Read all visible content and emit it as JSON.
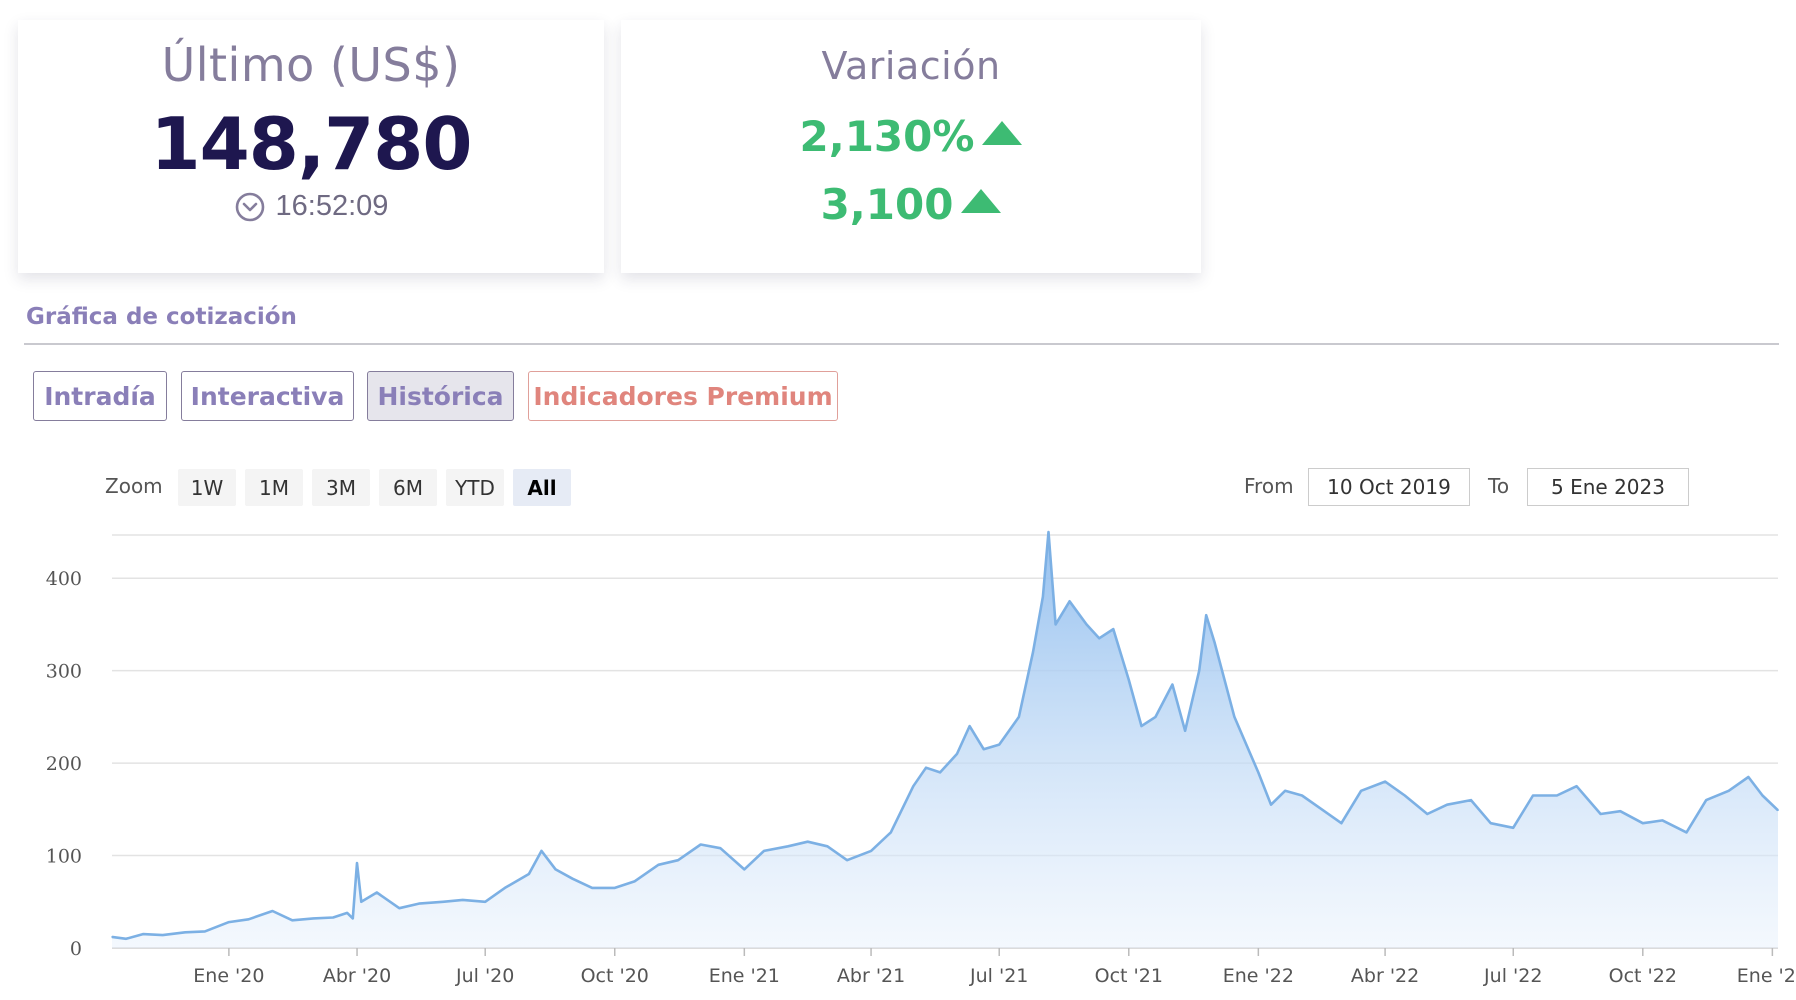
{
  "last_card": {
    "title": "Último (US$)",
    "price": "148,780",
    "time": "16:52:09",
    "icon": "clock-icon"
  },
  "variation_card": {
    "title": "Variación",
    "percent": "2,130%",
    "absolute": "3,100",
    "direction_icon": "arrow-up-icon",
    "color": "#3dbb73"
  },
  "section": {
    "title": "Gráfica de cotización"
  },
  "tabs": [
    {
      "label": "Intradía"
    },
    {
      "label": "Interactiva"
    },
    {
      "label": "Histórica",
      "active": true
    },
    {
      "label": "Indicadores Premium"
    }
  ],
  "range_selector": {
    "zoom_label": "Zoom",
    "buttons": [
      "1W",
      "1M",
      "3M",
      "6M",
      "YTD",
      "All"
    ],
    "selected": "All",
    "from_label": "From",
    "from_value": "10 Oct 2019",
    "to_label": "To",
    "to_value": "5 Ene 2023"
  },
  "chart_data": {
    "type": "area",
    "title": "",
    "xlabel": "",
    "ylabel": "",
    "x_start": "2019-10-10",
    "x_end": "2023-01-05",
    "ylim": [
      0,
      450
    ],
    "yticks": [
      0,
      100,
      200,
      300,
      400
    ],
    "xticks": [
      {
        "label": "Ene '20",
        "date": "2020-01-01"
      },
      {
        "label": "Abr '20",
        "date": "2020-04-01"
      },
      {
        "label": "Jul '20",
        "date": "2020-07-01"
      },
      {
        "label": "Oct '20",
        "date": "2020-10-01"
      },
      {
        "label": "Ene '21",
        "date": "2021-01-01"
      },
      {
        "label": "Abr '21",
        "date": "2021-04-01"
      },
      {
        "label": "Jul '21",
        "date": "2021-07-01"
      },
      {
        "label": "Oct '21",
        "date": "2021-10-01"
      },
      {
        "label": "Ene '22",
        "date": "2022-01-01"
      },
      {
        "label": "Abr '22",
        "date": "2022-04-01"
      },
      {
        "label": "Jul '22",
        "date": "2022-07-01"
      },
      {
        "label": "Oct '22",
        "date": "2022-10-01"
      },
      {
        "label": "Ene '23",
        "date": "2023-01-01"
      }
    ],
    "grid": true,
    "legend": "none",
    "line_color": "#7cb0e4",
    "fill_color": "#a9cdf2",
    "series": [
      {
        "points": [
          [
            "2019-10-10",
            12
          ],
          [
            "2019-10-20",
            10
          ],
          [
            "2019-11-01",
            15
          ],
          [
            "2019-11-15",
            14
          ],
          [
            "2019-12-01",
            17
          ],
          [
            "2019-12-15",
            18
          ],
          [
            "2020-01-01",
            28
          ],
          [
            "2020-01-15",
            31
          ],
          [
            "2020-02-01",
            40
          ],
          [
            "2020-02-15",
            30
          ],
          [
            "2020-03-01",
            32
          ],
          [
            "2020-03-15",
            33
          ],
          [
            "2020-03-25",
            38
          ],
          [
            "2020-03-29",
            32
          ],
          [
            "2020-04-01",
            92
          ],
          [
            "2020-04-04",
            50
          ],
          [
            "2020-04-15",
            60
          ],
          [
            "2020-05-01",
            43
          ],
          [
            "2020-05-15",
            48
          ],
          [
            "2020-06-01",
            50
          ],
          [
            "2020-06-15",
            52
          ],
          [
            "2020-07-01",
            50
          ],
          [
            "2020-07-15",
            65
          ],
          [
            "2020-08-01",
            80
          ],
          [
            "2020-08-10",
            105
          ],
          [
            "2020-08-20",
            85
          ],
          [
            "2020-09-01",
            75
          ],
          [
            "2020-09-15",
            65
          ],
          [
            "2020-10-01",
            65
          ],
          [
            "2020-10-15",
            72
          ],
          [
            "2020-11-01",
            90
          ],
          [
            "2020-11-15",
            95
          ],
          [
            "2020-12-01",
            112
          ],
          [
            "2020-12-15",
            108
          ],
          [
            "2021-01-01",
            85
          ],
          [
            "2021-01-15",
            105
          ],
          [
            "2021-02-01",
            110
          ],
          [
            "2021-02-15",
            115
          ],
          [
            "2021-03-01",
            110
          ],
          [
            "2021-03-15",
            95
          ],
          [
            "2021-04-01",
            105
          ],
          [
            "2021-04-15",
            125
          ],
          [
            "2021-05-01",
            175
          ],
          [
            "2021-05-10",
            195
          ],
          [
            "2021-05-20",
            190
          ],
          [
            "2021-06-01",
            210
          ],
          [
            "2021-06-10",
            240
          ],
          [
            "2021-06-20",
            215
          ],
          [
            "2021-07-01",
            220
          ],
          [
            "2021-07-15",
            250
          ],
          [
            "2021-07-25",
            320
          ],
          [
            "2021-08-01",
            380
          ],
          [
            "2021-08-05",
            450
          ],
          [
            "2021-08-10",
            350
          ],
          [
            "2021-08-20",
            375
          ],
          [
            "2021-09-01",
            350
          ],
          [
            "2021-09-10",
            335
          ],
          [
            "2021-09-20",
            345
          ],
          [
            "2021-10-01",
            290
          ],
          [
            "2021-10-10",
            240
          ],
          [
            "2021-10-20",
            250
          ],
          [
            "2021-11-01",
            285
          ],
          [
            "2021-11-10",
            235
          ],
          [
            "2021-11-20",
            300
          ],
          [
            "2021-11-25",
            360
          ],
          [
            "2021-12-01",
            330
          ],
          [
            "2021-12-15",
            250
          ],
          [
            "2022-01-01",
            190
          ],
          [
            "2022-01-10",
            155
          ],
          [
            "2022-01-20",
            170
          ],
          [
            "2022-02-01",
            165
          ],
          [
            "2022-02-15",
            150
          ],
          [
            "2022-03-01",
            135
          ],
          [
            "2022-03-15",
            170
          ],
          [
            "2022-04-01",
            180
          ],
          [
            "2022-04-15",
            165
          ],
          [
            "2022-05-01",
            145
          ],
          [
            "2022-05-15",
            155
          ],
          [
            "2022-06-01",
            160
          ],
          [
            "2022-06-15",
            135
          ],
          [
            "2022-07-01",
            130
          ],
          [
            "2022-07-15",
            165
          ],
          [
            "2022-08-01",
            165
          ],
          [
            "2022-08-15",
            175
          ],
          [
            "2022-09-01",
            145
          ],
          [
            "2022-09-15",
            148
          ],
          [
            "2022-10-01",
            135
          ],
          [
            "2022-10-15",
            138
          ],
          [
            "2022-11-01",
            125
          ],
          [
            "2022-11-15",
            160
          ],
          [
            "2022-12-01",
            170
          ],
          [
            "2022-12-15",
            185
          ],
          [
            "2022-12-25",
            165
          ],
          [
            "2023-01-05",
            149
          ]
        ]
      }
    ]
  }
}
